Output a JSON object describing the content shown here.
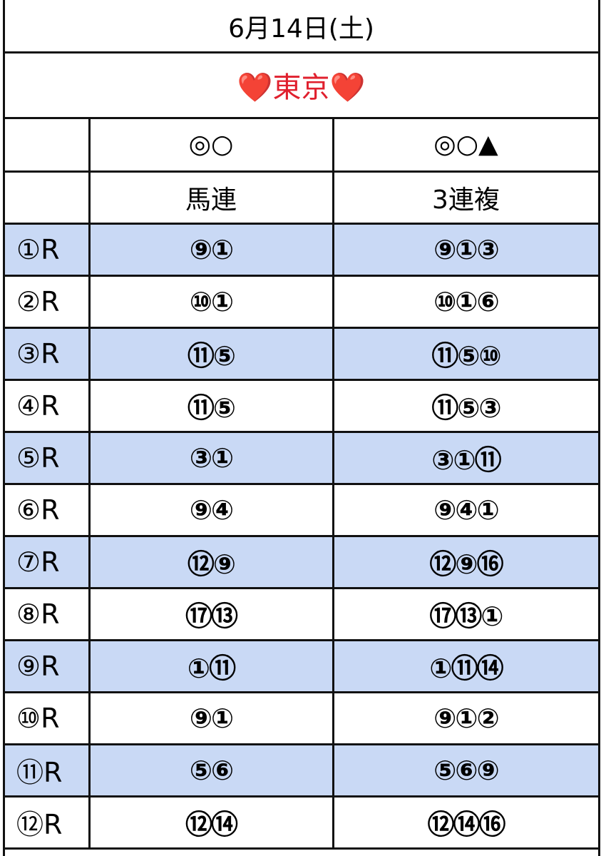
{
  "header": {
    "date": "6月14日(土)",
    "venue": "❤️東京❤️"
  },
  "columns": {
    "marks": [
      "◎○",
      "◎○▲"
    ],
    "bet_types": [
      "馬連",
      "3連複"
    ]
  },
  "rows": [
    [
      "①R",
      "⑨①",
      "⑨①③"
    ],
    [
      "②R",
      "⑩①",
      "⑩①⑥"
    ],
    [
      "③R",
      "⑪⑤",
      "⑪⑤⑩"
    ],
    [
      "④R",
      "⑪⑤",
      "⑪⑤③"
    ],
    [
      "⑤R",
      "③①",
      "③①⑪"
    ],
    [
      "⑥R",
      "⑨④",
      "⑨④①"
    ],
    [
      "⑦R",
      "⑫⑨",
      "⑫⑨⑯"
    ],
    [
      "⑧R",
      "⑰⑬",
      "⑰⑬①"
    ],
    [
      "⑨R",
      "①⑪",
      "①⑪⑭"
    ],
    [
      "⑩R",
      "⑨①",
      "⑨①②"
    ],
    [
      "⑪R",
      "⑤⑥",
      "⑤⑥⑨"
    ],
    [
      "⑫R",
      "⑫⑭",
      "⑫⑭⑯"
    ]
  ]
}
